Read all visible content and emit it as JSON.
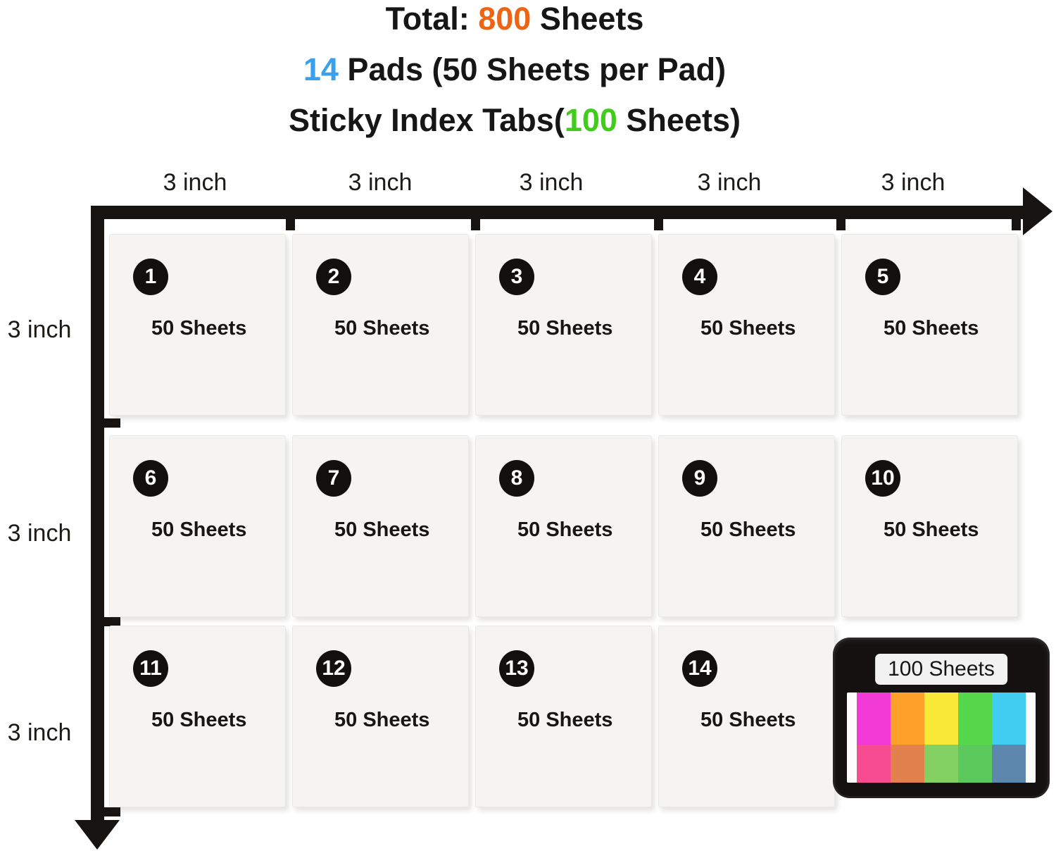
{
  "title": {
    "line1": {
      "prefix": "Total: ",
      "highlight": "800",
      "suffix": " Sheets",
      "highlight_color": "#ed6412"
    },
    "line2": {
      "prefix": "",
      "highlight": "14",
      "suffix": " Pads (50 Sheets per Pad)",
      "highlight_color": "#38a0ec"
    },
    "line3": {
      "prefix": "Sticky Index Tabs(",
      "highlight": "100",
      "suffix": " Sheets)",
      "highlight_color": "#40cc1b"
    }
  },
  "axes": {
    "top_labels": [
      "3 inch",
      "3 inch",
      "3 inch",
      "3 inch",
      "3 inch"
    ],
    "left_labels": [
      "3 inch",
      "3 inch",
      "3 inch"
    ]
  },
  "pads": [
    {
      "number": "1",
      "label": "50 Sheets"
    },
    {
      "number": "2",
      "label": "50 Sheets"
    },
    {
      "number": "3",
      "label": "50 Sheets"
    },
    {
      "number": "4",
      "label": "50 Sheets"
    },
    {
      "number": "5",
      "label": "50 Sheets"
    },
    {
      "number": "6",
      "label": "50 Sheets"
    },
    {
      "number": "7",
      "label": "50 Sheets"
    },
    {
      "number": "8",
      "label": "50 Sheets"
    },
    {
      "number": "9",
      "label": "50 Sheets"
    },
    {
      "number": "10",
      "label": "50 Sheets"
    },
    {
      "number": "11",
      "label": "50 Sheets"
    },
    {
      "number": "12",
      "label": "50 Sheets"
    },
    {
      "number": "13",
      "label": "50 Sheets"
    },
    {
      "number": "14",
      "label": "50 Sheets"
    }
  ],
  "tabs_product": {
    "label": "100 Sheets",
    "tab_rows": [
      {
        "name": "top-row",
        "colors": [
          "#f23ad6",
          "#ffa02a",
          "#fbe93a",
          "#56d64b",
          "#41ccf2"
        ]
      },
      {
        "name": "bottom-row",
        "colors": [
          "#f74b92",
          "#e2804e",
          "#84d163",
          "#5cc95d",
          "#5d87ac"
        ]
      }
    ]
  },
  "colors": {
    "axis": "#171310",
    "pad-bg": "#f5f4f2",
    "pad-border": "#eae8e5",
    "badge-bg": "#12100e",
    "text": "#161616",
    "case-bg": "#151110",
    "label-bg": "#f2f2f2",
    "window-bg": "#fdfdfd"
  }
}
